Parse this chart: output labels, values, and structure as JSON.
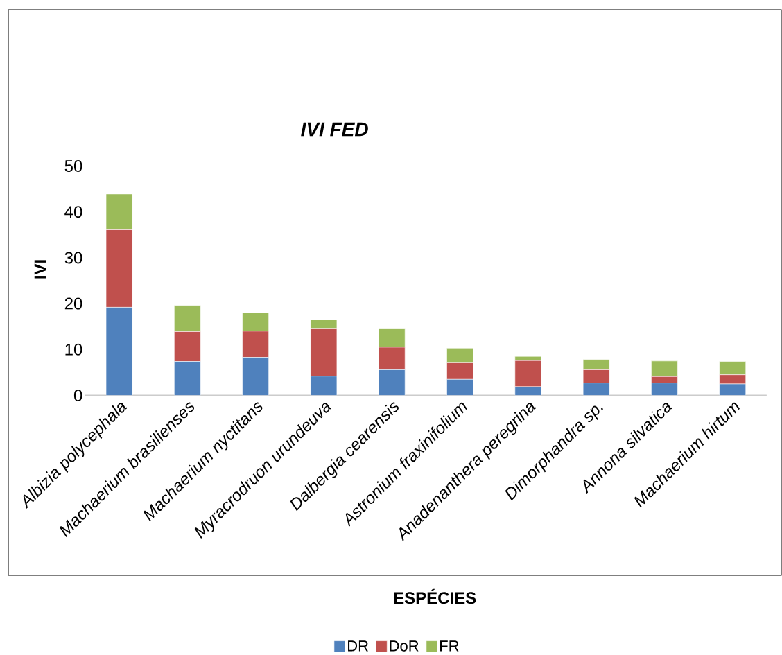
{
  "chart_data": {
    "type": "bar",
    "title": "IVI FED",
    "xlabel": "ESPÉCIES",
    "ylabel": "IVI",
    "categories": [
      "Albizia polycephala",
      "Machaerium brasilienses",
      "Machaerium nyctitans",
      "Myracrodruon urundeuva",
      "Dalbergia cearensis",
      "Astronium fraxinifolium",
      "Anadenanthera peregrina",
      "Dimorphandra sp.",
      "Annona silvatica",
      "Machaerium hirtum"
    ],
    "series": [
      {
        "name": "DR",
        "color": "#4f81bd",
        "values": [
          19.2,
          7.4,
          8.3,
          4.2,
          5.6,
          3.5,
          1.9,
          2.7,
          2.7,
          2.5
        ]
      },
      {
        "name": "DoR",
        "color": "#c0504d",
        "values": [
          16.9,
          6.5,
          5.7,
          10.4,
          4.9,
          3.7,
          5.7,
          2.9,
          1.4,
          2.0
        ]
      },
      {
        "name": "FR",
        "color": "#9bbb59",
        "values": [
          7.8,
          5.7,
          4.0,
          1.9,
          4.1,
          3.1,
          0.9,
          2.2,
          3.4,
          2.9
        ]
      }
    ],
    "stacked": true,
    "ylim": [
      0,
      50
    ],
    "yticks": [
      0,
      10,
      20,
      30,
      40,
      50
    ],
    "grid": false,
    "legend": "bottom"
  }
}
